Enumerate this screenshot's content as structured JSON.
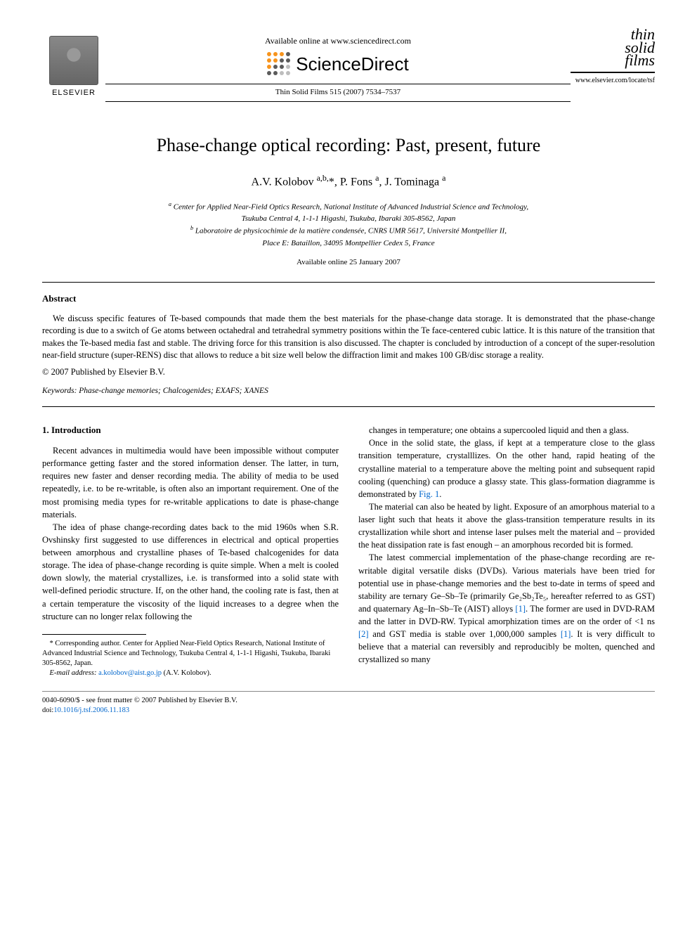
{
  "header": {
    "elsevier_label": "ELSEVIER",
    "available_online": "Available online at www.sciencedirect.com",
    "sciencedirect": "ScienceDirect",
    "sd_dot_colors": [
      "#f7941d",
      "#f7941d",
      "#f7941d",
      "#5b5b5b",
      "#f7941d",
      "#f7941d",
      "#5b5b5b",
      "#5b5b5b",
      "#f7941d",
      "#5b5b5b",
      "#5b5b5b",
      "#bdbdbd",
      "#5b5b5b",
      "#5b5b5b",
      "#bdbdbd",
      "#bdbdbd"
    ],
    "journal_ref": "Thin Solid Films 515 (2007) 7534–7537",
    "tsf_line_1": "thin",
    "tsf_line_2": "solid",
    "tsf_line_3": "films",
    "journal_url": "www.elsevier.com/locate/tsf"
  },
  "article": {
    "title": "Phase-change optical recording: Past, present, future",
    "authors_html": "A.V. Kolobov <sup>a,b,</sup>*, P. Fons <sup>a</sup>, J. Tominaga <sup>a</sup>",
    "aff_a": "Center for Applied Near-Field Optics Research, National Institute of Advanced Industrial Science and Technology,",
    "aff_a2": "Tsukuba Central 4, 1-1-1 Higashi, Tsukuba, Ibaraki 305-8562, Japan",
    "aff_b": "Laboratoire de physicochimie de la matière condensée, CNRS UMR 5617, Université Montpellier II,",
    "aff_b2": "Place E: Bataillon, 34095 Montpellier Cedex 5, France",
    "available_date": "Available online 25 January 2007"
  },
  "abstract": {
    "heading": "Abstract",
    "text": "We discuss specific features of Te-based compounds that made them the best materials for the phase-change data storage. It is demonstrated that the phase-change recording is due to a switch of Ge atoms between octahedral and tetrahedral symmetry positions within the Te face-centered cubic lattice. It is this nature of the transition that makes the Te-based media fast and stable. The driving force for this transition is also discussed. The chapter is concluded by introduction of a concept of the super-resolution near-field structure (super-RENS) disc that allows to reduce a bit size well below the diffraction limit and makes 100 GB/disc storage a reality.",
    "copyright": "© 2007 Published by Elsevier B.V.",
    "keywords_label": "Keywords:",
    "keywords": " Phase-change memories; Chalcogenides; EXAFS; XANES"
  },
  "body": {
    "section1_heading": "1. Introduction",
    "p1": "Recent advances in multimedia would have been impossible without computer performance getting faster and the stored information denser. The latter, in turn, requires new faster and denser recording media. The ability of media to be used repeatedly, i.e. to be re-writable, is often also an important requirement. One of the most promising media types for re-writable applications to date is phase-change materials.",
    "p2": "The idea of phase change-recording dates back to the mid 1960s when S.R. Ovshinsky first suggested to use differences in electrical and optical properties between amorphous and crystalline phases of Te-based chalcogenides for data storage. The idea of phase-change recording is quite simple. When a melt is cooled down slowly, the material crystallizes, i.e. is transformed into a solid state with well-defined periodic structure. If, on the other hand, the cooling rate is fast, then at a certain temperature the viscosity of the liquid increases to a degree when the structure can no longer relax following the",
    "p3": "changes in temperature; one obtains a supercooled liquid and then a glass.",
    "p4_a": "Once in the solid state, the glass, if kept at a temperature close to the glass transition temperature, crystalllizes. On the other hand, rapid heating of the crystalline material to a temperature above the melting point and subsequent rapid cooling (quenching) can produce a glassy state. This glass-formation diagramme is demonstrated by ",
    "p4_fig": "Fig. 1",
    "p4_b": ".",
    "p5": "The material can also be heated by light. Exposure of an amorphous material to a laser light such that heats it above the glass-transition temperature results in its crystallization while short and intense laser pulses melt the material and – provided the heat dissipation rate is fast enough – an amorphous recorded bit is formed.",
    "p6_a": "The latest commercial implementation of the phase-change recording are re-writable digital versatile disks (DVDs). Various materials have been tried for potential use in phase-change memories and the best to-date in terms of speed and stability are ternary Ge–Sb–Te (primarily Ge₂Sb₂Te₅, hereafter referred to as GST) and quaternary Ag–In–Sb–Te (AIST) alloys ",
    "ref1": "[1]",
    "p6_b": ". The former are used in DVD-RAM and the latter in DVD-RW. Typical amorphization times are on the order of <1 ns ",
    "ref2": "[2]",
    "p6_c": " and GST media is stable over 1,000,000 samples ",
    "p6_d": ". It is very difficult to believe that a material can reversibly and reproducibly be molten, quenched and crystallized so many"
  },
  "footnote": {
    "corr": "* Corresponding author. Center for Applied Near-Field Optics Research, National Institute of Advanced Industrial Science and Technology, Tsukuba Central 4, 1-1-1 Higashi, Tsukuba, Ibaraki 305-8562, Japan.",
    "email_label": "E-mail address:",
    "email": "a.kolobov@aist.go.jp",
    "email_author": " (A.V. Kolobov)."
  },
  "footer": {
    "line1": "0040-6090/$ - see front matter © 2007 Published by Elsevier B.V.",
    "doi_label": "doi:",
    "doi": "10.1016/j.tsf.2006.11.183"
  }
}
